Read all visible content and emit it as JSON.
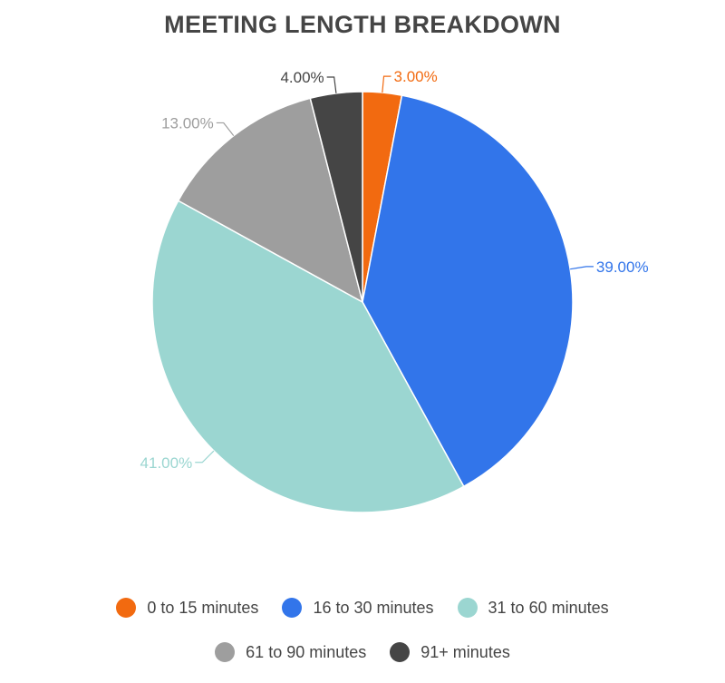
{
  "chart_data": {
    "type": "pie",
    "title": "MEETING LENGTH BREAKDOWN",
    "slices": [
      {
        "label": "0 to 15 minutes",
        "value": 3.0,
        "value_label": "3.00%",
        "color": "#f26a10"
      },
      {
        "label": "16 to 30 minutes",
        "value": 39.0,
        "value_label": "39.00%",
        "color": "#3275ea"
      },
      {
        "label": "31 to 60 minutes",
        "value": 41.0,
        "value_label": "41.00%",
        "color": "#9bd6d1"
      },
      {
        "label": "61 to 90 minutes",
        "value": 13.0,
        "value_label": "13.00%",
        "color": "#9e9e9e"
      },
      {
        "label": "91+ minutes",
        "value": 4.0,
        "value_label": "4.00%",
        "color": "#454545"
      }
    ],
    "legend_position": "bottom"
  }
}
